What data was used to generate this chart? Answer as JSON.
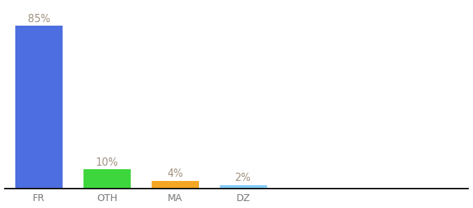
{
  "categories": [
    "FR",
    "OTH",
    "MA",
    "DZ"
  ],
  "values": [
    85,
    10,
    4,
    2
  ],
  "bar_colors": [
    "#4c6ee0",
    "#3dd63d",
    "#f5a623",
    "#87cefa"
  ],
  "value_labels": [
    "85%",
    "10%",
    "4%",
    "2%"
  ],
  "label_color": "#a09080",
  "tick_color": "#777777",
  "background_color": "#ffffff",
  "ylim": [
    0,
    96
  ],
  "bar_width": 0.7,
  "label_fontsize": 10.5,
  "tick_fontsize": 10,
  "x_positions": [
    0.5,
    1.5,
    2.5,
    3.5
  ],
  "xlim": [
    0,
    6.8
  ]
}
